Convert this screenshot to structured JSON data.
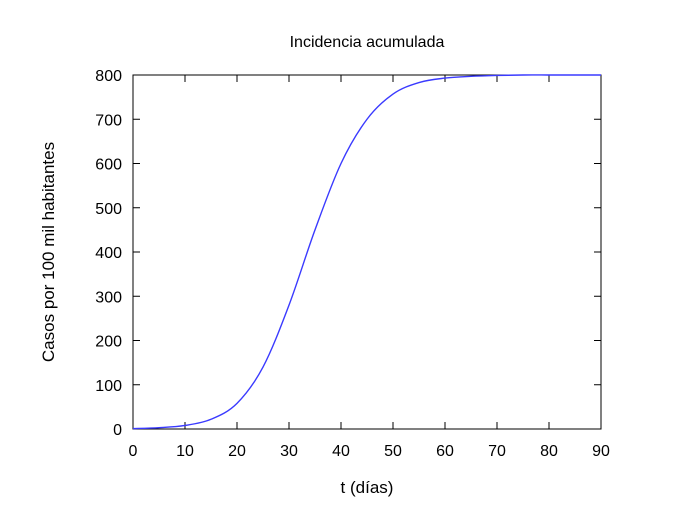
{
  "chart_data": {
    "type": "line",
    "title": "Incidencia acumulada",
    "xlabel": "t (días)",
    "ylabel": "Casos por 100 mil habitantes",
    "xlim": [
      0,
      90
    ],
    "ylim": [
      0,
      800
    ],
    "xticks": [
      0,
      10,
      20,
      30,
      40,
      50,
      60,
      70,
      80,
      90
    ],
    "yticks": [
      0,
      100,
      200,
      300,
      400,
      500,
      600,
      700,
      800
    ],
    "grid": false,
    "legend": "none",
    "series": [
      {
        "color": "#3a3aff",
        "x": [
          0,
          5,
          10,
          15,
          20,
          25,
          30,
          35,
          40,
          45,
          50,
          55,
          60,
          65,
          70,
          75,
          80,
          85,
          90
        ],
        "y": [
          1,
          3,
          8,
          22,
          58,
          140,
          280,
          450,
          600,
          700,
          757,
          783,
          793,
          797,
          799,
          800,
          800,
          800,
          800
        ]
      }
    ]
  }
}
